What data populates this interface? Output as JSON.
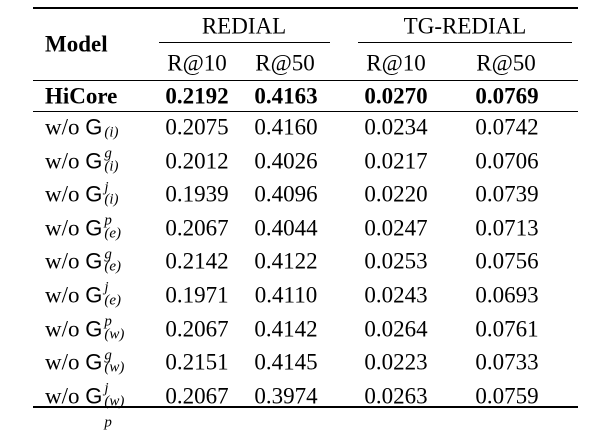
{
  "table": {
    "header": {
      "model": "Model",
      "groups": [
        "REDIAL",
        "TG-REDIAL"
      ],
      "metrics": [
        "R@10",
        "R@50",
        "R@10",
        "R@50"
      ]
    },
    "best_row": {
      "label": "HiCore",
      "values": [
        "0.2192",
        "0.4163",
        "0.0270",
        "0.0769"
      ]
    },
    "ablation_rows": [
      {
        "prefix": "w/o",
        "symbol": "G",
        "sup": "(i)",
        "sub": "g",
        "values": [
          "0.2075",
          "0.4160",
          "0.0234",
          "0.0742"
        ]
      },
      {
        "prefix": "w/o",
        "symbol": "G",
        "sup": "(i)",
        "sub": "j",
        "values": [
          "0.2012",
          "0.4026",
          "0.0217",
          "0.0706"
        ]
      },
      {
        "prefix": "w/o",
        "symbol": "G",
        "sup": "(i)",
        "sub": "p",
        "values": [
          "0.1939",
          "0.4096",
          "0.0220",
          "0.0739"
        ]
      },
      {
        "prefix": "w/o",
        "symbol": "G",
        "sup": "(e)",
        "sub": "g",
        "values": [
          "0.2067",
          "0.4044",
          "0.0247",
          "0.0713"
        ]
      },
      {
        "prefix": "w/o",
        "symbol": "G",
        "sup": "(e)",
        "sub": "j",
        "values": [
          "0.2142",
          "0.4122",
          "0.0253",
          "0.0756"
        ]
      },
      {
        "prefix": "w/o",
        "symbol": "G",
        "sup": "(e)",
        "sub": "p",
        "values": [
          "0.1971",
          "0.4110",
          "0.0243",
          "0.0693"
        ]
      },
      {
        "prefix": "w/o",
        "symbol": "G",
        "sup": "(w)",
        "sub": "g",
        "values": [
          "0.2067",
          "0.4142",
          "0.0264",
          "0.0761"
        ]
      },
      {
        "prefix": "w/o",
        "symbol": "G",
        "sup": "(w)",
        "sub": "j",
        "values": [
          "0.2151",
          "0.4145",
          "0.0223",
          "0.0733"
        ]
      },
      {
        "prefix": "w/o",
        "symbol": "G",
        "sup": "(w)",
        "sub": "p",
        "values": [
          "0.2067",
          "0.3974",
          "0.0263",
          "0.0759"
        ]
      }
    ]
  }
}
